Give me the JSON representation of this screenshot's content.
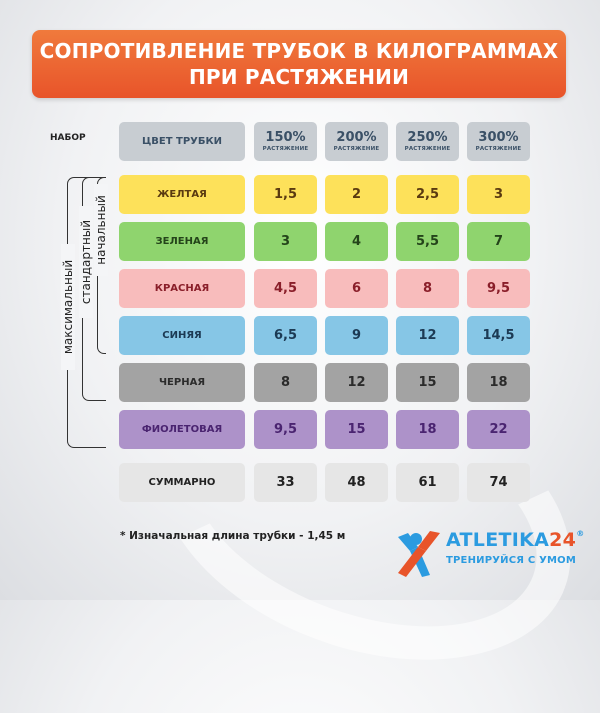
{
  "title": {
    "line1": "СОПРОТИВЛЕНИЕ ТРУБОК В КИЛОГРАММАХ",
    "line2": "ПРИ РАСТЯЖЕНИИ"
  },
  "table": {
    "set_header": "НАБОР",
    "color_header": "ЦВЕТ ТРУБКИ",
    "columns": [
      {
        "pct": "150%",
        "sub": "РАСТЯЖЕНИЕ"
      },
      {
        "pct": "200%",
        "sub": "РАСТЯЖЕНИЕ"
      },
      {
        "pct": "250%",
        "sub": "РАСТЯЖЕНИЕ"
      },
      {
        "pct": "300%",
        "sub": "РАСТЯЖЕНИЕ"
      }
    ],
    "rows": [
      {
        "label": "ЖЕЛТАЯ",
        "values": [
          "1,5",
          "2",
          "2,5",
          "3"
        ],
        "bg": "#fde15a",
        "fg": "#5a3a10"
      },
      {
        "label": "ЗЕЛЕНАЯ",
        "values": [
          "3",
          "4",
          "5,5",
          "7"
        ],
        "bg": "#8fd46e",
        "fg": "#24441a"
      },
      {
        "label": "КРАСНАЯ",
        "values": [
          "4,5",
          "6",
          "8",
          "9,5"
        ],
        "bg": "#f8bcbc",
        "fg": "#8a1f2a"
      },
      {
        "label": "СИНЯЯ",
        "values": [
          "6,5",
          "9",
          "12",
          "14,5"
        ],
        "bg": "#86c6e6",
        "fg": "#1c3a54"
      },
      {
        "label": "ЧЕРНАЯ",
        "values": [
          "8",
          "12",
          "15",
          "18"
        ],
        "bg": "#a3a3a3",
        "fg": "#2b2b2b"
      },
      {
        "label": "ФИОЛЕТОВАЯ",
        "values": [
          "9,5",
          "15",
          "18",
          "22"
        ],
        "bg": "#ad92c9",
        "fg": "#4a2470"
      }
    ],
    "total": {
      "label": "СУММАРНО",
      "values": [
        "33",
        "48",
        "61",
        "74"
      ],
      "bg": "#e6e6e6",
      "fg": "#222222"
    }
  },
  "sets": [
    {
      "name": "начальный",
      "rows": "ЖЕЛТАЯ–СИНЯЯ"
    },
    {
      "name": "стандартный",
      "rows": "ЖЕЛТАЯ–ЧЕРНАЯ"
    },
    {
      "name": "максимальный",
      "rows": "ЖЕЛТАЯ–ФИОЛЕТОВАЯ"
    }
  ],
  "footnote": "* Изначальная длина трубки - 1,45 м",
  "logo": {
    "name": "ATLETIKA",
    "number": "24",
    "registered": "®",
    "tagline": "ТРЕНИРУЙСЯ С УМОМ",
    "colors": {
      "blue": "#2b9be0",
      "orange": "#e8542a"
    }
  },
  "colors": {
    "banner_top": "#f07a3c",
    "banner_bottom": "#e8542a",
    "header_bg": "#c8cdd2",
    "header_text": "#3a5066"
  }
}
